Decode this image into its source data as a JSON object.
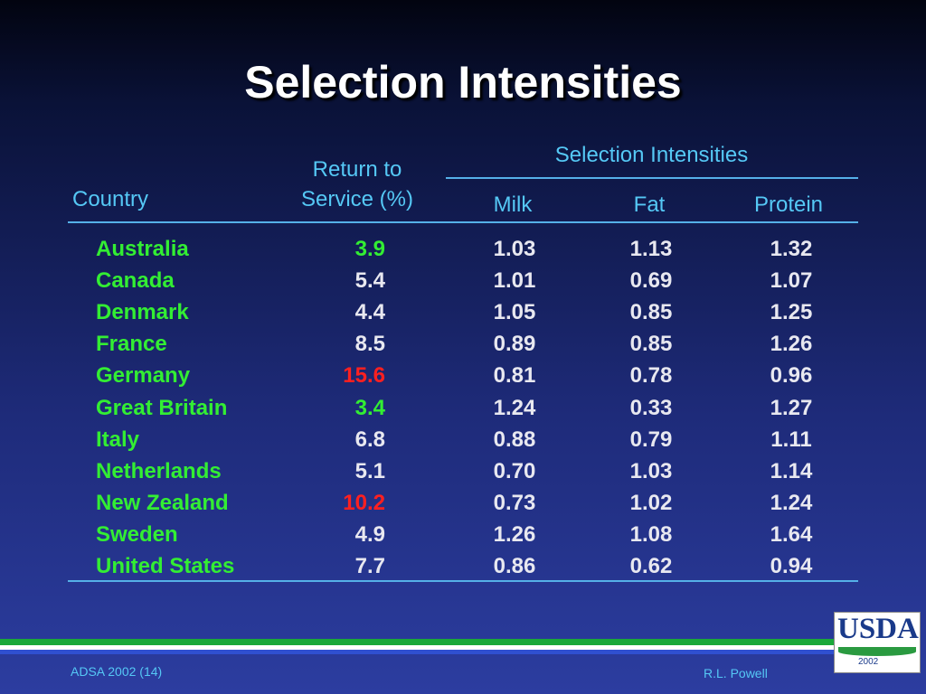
{
  "header": {
    "title": "Selection Intensities"
  },
  "table": {
    "group_header": "Selection Intensities",
    "columns": {
      "country": "Country",
      "return": [
        "Return to",
        "Service (%)"
      ],
      "milk": "Milk",
      "fat": "Fat",
      "protein": "Protein"
    },
    "rows": [
      {
        "country": "Australia",
        "return": "3.9",
        "return_color": "#33ee33",
        "milk": "1.03",
        "fat": "1.13",
        "protein": "1.32"
      },
      {
        "country": "Canada",
        "return": "5.4",
        "return_color": "#e8e8f0",
        "milk": "1.01",
        "fat": "0.69",
        "protein": "1.07"
      },
      {
        "country": "Denmark",
        "return": "4.4",
        "return_color": "#e8e8f0",
        "milk": "1.05",
        "fat": "0.85",
        "protein": "1.25"
      },
      {
        "country": "France",
        "return": "8.5",
        "return_color": "#e8e8f0",
        "milk": "0.89",
        "fat": "0.85",
        "protein": "1.26"
      },
      {
        "country": "Germany",
        "return": "15.6",
        "return_color": "#ff2020",
        "milk": "0.81",
        "fat": "0.78",
        "protein": "0.96"
      },
      {
        "country": "Great Britain",
        "return": "3.4",
        "return_color": "#33ee33",
        "milk": "1.24",
        "fat": "0.33",
        "protein": "1.27"
      },
      {
        "country": "Italy",
        "return": "6.8",
        "return_color": "#e8e8f0",
        "milk": "0.88",
        "fat": "0.79",
        "protein": "1.11"
      },
      {
        "country": "Netherlands",
        "return": "5.1",
        "return_color": "#e8e8f0",
        "milk": "0.70",
        "fat": "1.03",
        "protein": "1.14"
      },
      {
        "country": "New Zealand",
        "return": "10.2",
        "return_color": "#ff2020",
        "milk": "0.73",
        "fat": "1.02",
        "protein": "1.24"
      },
      {
        "country": "Sweden",
        "return": "4.9",
        "return_color": "#e8e8f0",
        "milk": "1.26",
        "fat": "1.08",
        "protein": "1.64"
      },
      {
        "country": "United States",
        "return": "7.7",
        "return_color": "#e8e8f0",
        "milk": "0.86",
        "fat": "0.62",
        "protein": "0.94"
      }
    ]
  },
  "footer": {
    "left": "ADSA 2002 (14)",
    "right": "R.L. Powell"
  },
  "logo": {
    "name": "USDA",
    "year": "2002"
  }
}
